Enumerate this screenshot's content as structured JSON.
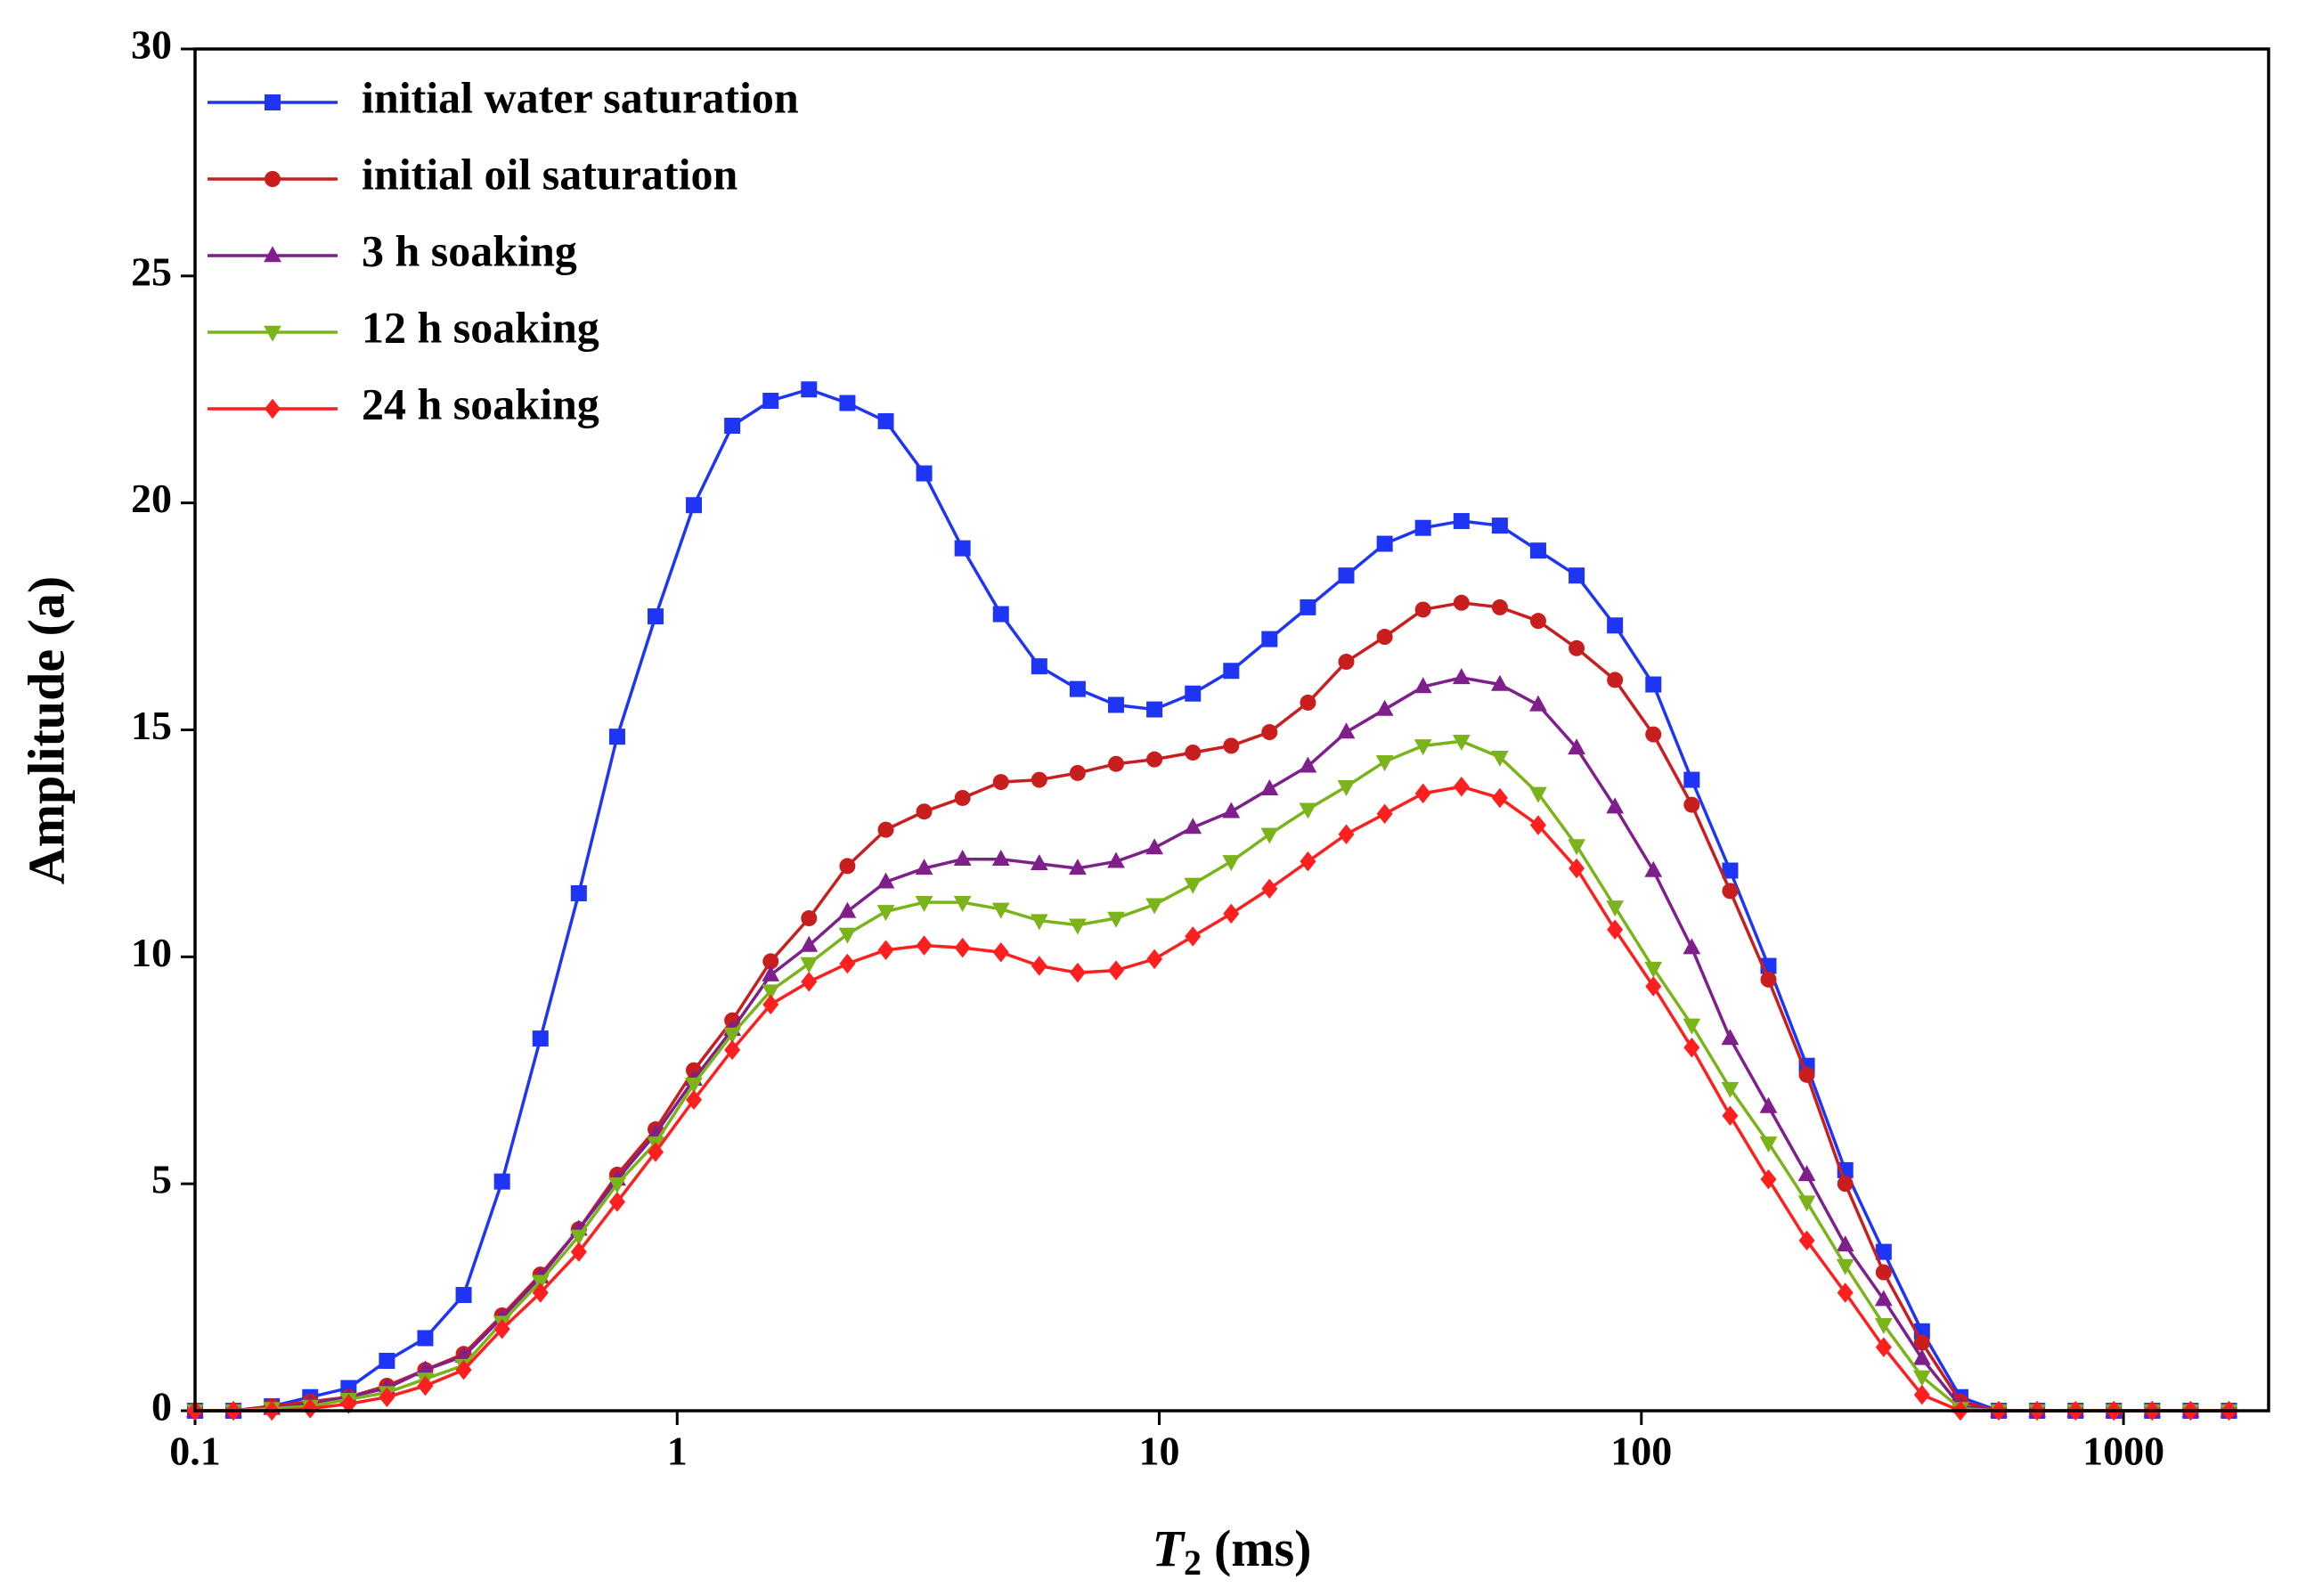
{
  "chart_data": {
    "type": "line",
    "xlabel": {
      "symbol": "T",
      "subscript": "2",
      "rest": "(ms)"
    },
    "ylabel": "Amplitude (a)",
    "xscale": "log",
    "xlim": [
      0.1,
      2000
    ],
    "xticks": [
      0.1,
      1,
      10,
      100,
      1000
    ],
    "ylim": [
      0,
      30
    ],
    "yticks": [
      0,
      5,
      10,
      15,
      20,
      25,
      30
    ],
    "grid": false,
    "legend": "upper left",
    "x": [
      0.1,
      0.1201,
      0.1443,
      0.1733,
      0.2082,
      0.25,
      0.3003,
      0.3607,
      0.4333,
      0.5205,
      0.6252,
      0.751,
      0.902,
      1.083,
      1.301,
      1.563,
      1.877,
      2.255,
      2.709,
      3.253,
      3.908,
      4.694,
      5.638,
      6.772,
      8.135,
      9.772,
      11.74,
      14.1,
      16.93,
      20.34,
      24.43,
      29.35,
      35.25,
      42.35,
      50.87,
      61.09,
      73.39,
      88.15,
      105.9,
      127.2,
      152.8,
      183.5,
      220.4,
      264.8,
      318.1,
      382.0,
      458.9,
      551.2,
      662.1,
      795.3,
      955.0,
      1147,
      1378,
      1655
    ],
    "series": [
      {
        "name": "initial water saturation",
        "color": "#1f35f5",
        "marker": "square",
        "values": [
          0,
          0,
          0.1,
          0.3,
          0.5,
          1.1,
          1.6,
          2.55,
          5.05,
          8.2,
          11.4,
          14.85,
          17.5,
          19.95,
          21.7,
          22.25,
          22.5,
          22.2,
          21.8,
          20.65,
          19.0,
          17.55,
          16.4,
          15.9,
          15.55,
          15.45,
          15.8,
          16.3,
          17.0,
          17.7,
          18.4,
          19.1,
          19.45,
          19.6,
          19.5,
          18.95,
          18.4,
          17.3,
          16.0,
          13.9,
          11.9,
          9.8,
          7.6,
          5.3,
          3.5,
          1.75,
          0.3,
          0,
          0,
          0,
          0,
          0,
          0,
          0
        ]
      },
      {
        "name": "initial oil saturation",
        "color": "#c81e1e",
        "marker": "circle",
        "values": [
          0,
          0,
          0.1,
          0.2,
          0.3,
          0.55,
          0.9,
          1.25,
          2.1,
          3.0,
          4.0,
          5.2,
          6.2,
          7.5,
          8.6,
          9.9,
          10.85,
          12.0,
          12.8,
          13.2,
          13.5,
          13.85,
          13.9,
          14.05,
          14.25,
          14.35,
          14.5,
          14.65,
          14.95,
          15.6,
          16.5,
          17.05,
          17.65,
          17.8,
          17.7,
          17.4,
          16.8,
          16.1,
          14.9,
          13.35,
          11.45,
          9.5,
          7.4,
          5.0,
          3.05,
          1.5,
          0.2,
          0,
          0,
          0,
          0,
          0,
          0,
          0
        ]
      },
      {
        "name": "3 h soaking",
        "color": "#7f1f8c",
        "marker": "triangle-up",
        "values": [
          0,
          0,
          0.05,
          0.15,
          0.3,
          0.5,
          0.9,
          1.2,
          2.05,
          2.95,
          4.0,
          5.1,
          6.1,
          7.3,
          8.4,
          9.6,
          10.25,
          11.0,
          11.65,
          11.95,
          12.15,
          12.15,
          12.05,
          11.95,
          12.1,
          12.4,
          12.85,
          13.2,
          13.7,
          14.2,
          14.95,
          15.45,
          15.95,
          16.15,
          16.0,
          15.55,
          14.6,
          13.3,
          11.9,
          10.2,
          8.2,
          6.7,
          5.2,
          3.65,
          2.45,
          1.15,
          0.1,
          0,
          0,
          0,
          0,
          0,
          0,
          0
        ]
      },
      {
        "name": "12 h soaking",
        "color": "#7bb31b",
        "marker": "triangle-down",
        "values": [
          0,
          0,
          0.05,
          0.1,
          0.25,
          0.4,
          0.7,
          1.0,
          1.95,
          2.85,
          3.85,
          5.0,
          5.9,
          7.2,
          8.3,
          9.25,
          9.85,
          10.5,
          11.0,
          11.2,
          11.2,
          11.05,
          10.8,
          10.7,
          10.85,
          11.15,
          11.6,
          12.1,
          12.7,
          13.25,
          13.75,
          14.3,
          14.65,
          14.75,
          14.4,
          13.6,
          12.45,
          11.1,
          9.75,
          8.5,
          7.1,
          5.9,
          4.6,
          3.2,
          1.9,
          0.75,
          0.05,
          0,
          0,
          0,
          0,
          0,
          0,
          0
        ]
      },
      {
        "name": "24 h soaking",
        "color": "#ff1f1f",
        "marker": "diamond",
        "values": [
          0,
          0,
          0,
          0.05,
          0.15,
          0.3,
          0.55,
          0.9,
          1.8,
          2.6,
          3.5,
          4.6,
          5.7,
          6.85,
          7.95,
          8.95,
          9.45,
          9.85,
          10.15,
          10.25,
          10.2,
          10.1,
          9.8,
          9.65,
          9.7,
          9.95,
          10.45,
          10.95,
          11.5,
          12.1,
          12.7,
          13.15,
          13.6,
          13.75,
          13.5,
          12.9,
          11.95,
          10.6,
          9.35,
          8.0,
          6.5,
          5.1,
          3.75,
          2.6,
          1.4,
          0.35,
          0,
          0,
          0,
          0,
          0,
          0,
          0,
          0
        ]
      }
    ]
  }
}
